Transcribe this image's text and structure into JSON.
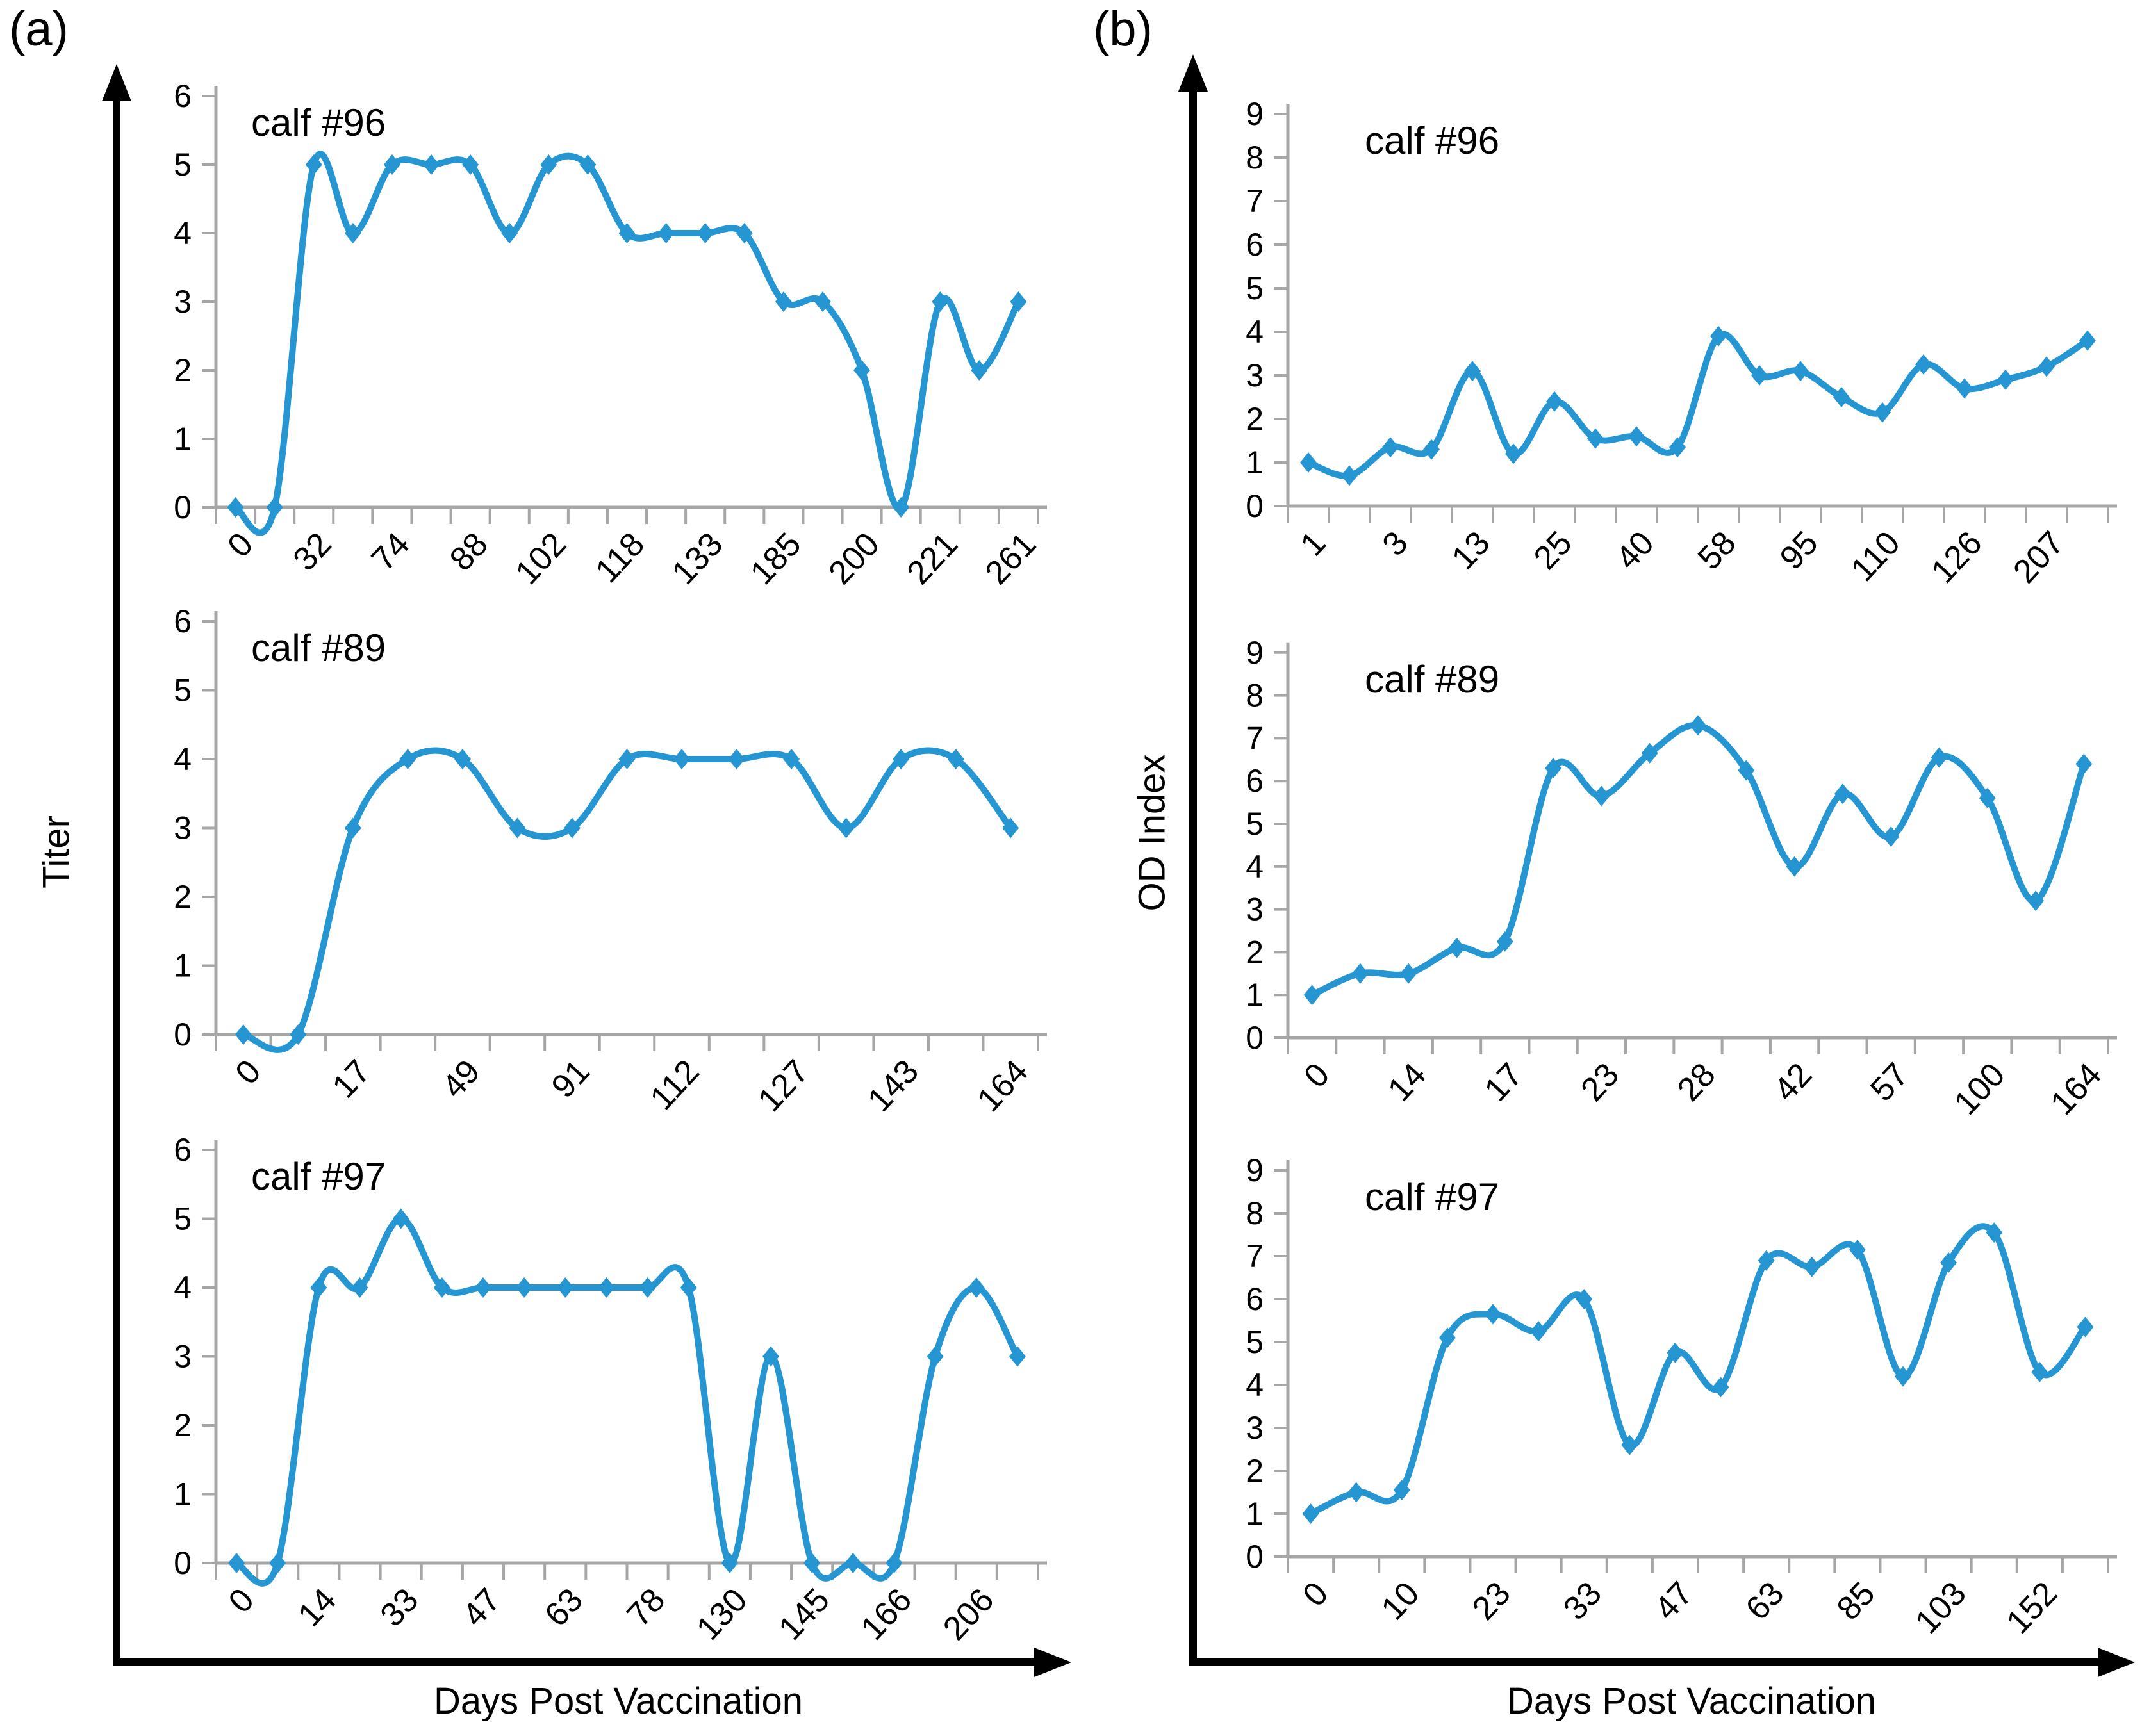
{
  "figure": {
    "panels": [
      {
        "id": "a",
        "label": "(a)",
        "y_axis_title": "Titer",
        "x_axis_title": "Days Post Vaccination",
        "y_ticks": [
          "0",
          "1",
          "2",
          "3",
          "4",
          "5",
          "6"
        ]
      },
      {
        "id": "b",
        "label": "(b)",
        "y_axis_title": "OD Index",
        "x_axis_title": "Days Post Vaccination",
        "y_ticks": [
          "0",
          "1",
          "2",
          "3",
          "4",
          "5",
          "6",
          "7",
          "8",
          "9"
        ]
      }
    ]
  },
  "colors": {
    "line": "#2596D2",
    "axis": "#A6A6A6",
    "text": "#000000"
  },
  "chart_data": [
    {
      "panel": "a",
      "type": "line",
      "title": "calf #96",
      "ylabel": "Titer",
      "xlabel": "Days Post Vaccination",
      "ylim": [
        0,
        6
      ],
      "x_tick_labels": [
        "0",
        "32",
        "74",
        "88",
        "102",
        "118",
        "133",
        "185",
        "200",
        "221",
        "261"
      ],
      "label_every": 2,
      "values": [
        0,
        0,
        5,
        4,
        5,
        5,
        5,
        4,
        5,
        5,
        4,
        4,
        4,
        4,
        3,
        3,
        2,
        0,
        3,
        2,
        3
      ]
    },
    {
      "panel": "a",
      "type": "line",
      "title": "calf #89",
      "ylabel": "Titer",
      "xlabel": "Days Post Vaccination",
      "ylim": [
        0,
        6
      ],
      "x_tick_labels": [
        "0",
        "17",
        "49",
        "91",
        "112",
        "127",
        "143",
        "164"
      ],
      "label_every": 2,
      "values": [
        0,
        0,
        3,
        4,
        4,
        3,
        3,
        4,
        4,
        4,
        4,
        3,
        4,
        4,
        3
      ]
    },
    {
      "panel": "a",
      "type": "line",
      "title": "calf #97",
      "ylabel": "Titer",
      "xlabel": "Days Post Vaccination",
      "ylim": [
        0,
        6
      ],
      "x_tick_labels": [
        "0",
        "14",
        "33",
        "47",
        "63",
        "78",
        "130",
        "145",
        "166",
        "206"
      ],
      "label_every": 2,
      "values": [
        0,
        0,
        4,
        4,
        5,
        4,
        4,
        4,
        4,
        4,
        4,
        4,
        0,
        3,
        0,
        0,
        0,
        3,
        4,
        3
      ]
    },
    {
      "panel": "b",
      "type": "line",
      "title": "calf #96",
      "ylabel": "OD Index",
      "xlabel": "Days Post Vaccination",
      "ylim": [
        0,
        9
      ],
      "x_tick_labels": [
        "1",
        "3",
        "13",
        "25",
        "40",
        "58",
        "95",
        "110",
        "126",
        "207"
      ],
      "label_every": 2,
      "values": [
        1.0,
        0.7,
        1.35,
        1.3,
        3.1,
        1.2,
        2.4,
        1.55,
        1.6,
        1.35,
        3.9,
        3.0,
        3.1,
        2.5,
        2.15,
        3.25,
        2.7,
        2.9,
        3.2,
        3.8
      ]
    },
    {
      "panel": "b",
      "type": "line",
      "title": "calf #89",
      "ylabel": "OD Index",
      "xlabel": "Days Post Vaccination",
      "ylim": [
        0,
        9
      ],
      "x_tick_labels": [
        "0",
        "14",
        "17",
        "23",
        "28",
        "42",
        "57",
        "100",
        "164"
      ],
      "label_every": 2,
      "values": [
        1.0,
        1.5,
        1.5,
        2.1,
        2.25,
        6.3,
        5.65,
        6.65,
        7.3,
        6.25,
        4.0,
        5.7,
        4.7,
        6.55,
        5.6,
        3.2,
        6.4
      ]
    },
    {
      "panel": "b",
      "type": "line",
      "title": "calf #97",
      "ylabel": "OD Index",
      "xlabel": "Days Post Vaccination",
      "ylim": [
        0,
        9
      ],
      "x_tick_labels": [
        "0",
        "10",
        "23",
        "33",
        "47",
        "63",
        "85",
        "103",
        "152"
      ],
      "label_every": 2,
      "values": [
        1.0,
        1.5,
        1.55,
        5.1,
        5.65,
        5.25,
        6.0,
        2.6,
        4.75,
        3.95,
        6.9,
        6.75,
        7.15,
        4.2,
        6.85,
        7.55,
        4.3,
        5.35
      ]
    }
  ]
}
